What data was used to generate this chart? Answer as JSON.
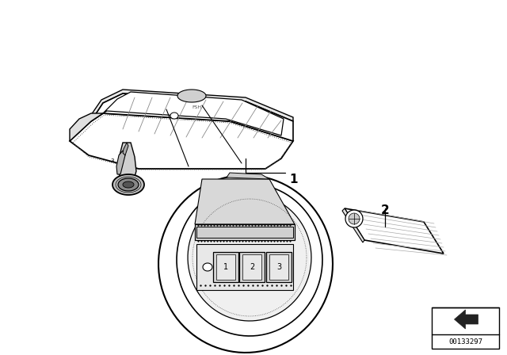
{
  "background_color": "#ffffff",
  "line_color": "#000000",
  "part_number": "00133297",
  "label_1": "1",
  "label_2": "2",
  "fig_width": 6.4,
  "fig_height": 4.48,
  "dpi": 100
}
